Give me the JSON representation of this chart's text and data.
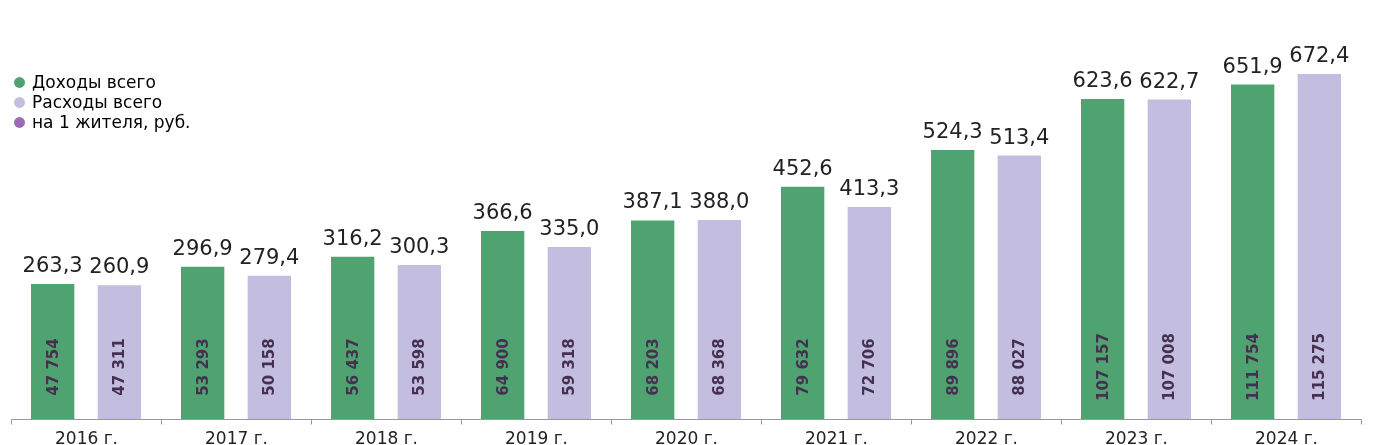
{
  "chart_data": {
    "type": "bar",
    "categories": [
      "2016 г.",
      "2017 г.",
      "2018 г.",
      "2019 г.",
      "2020 г.",
      "2021 г.",
      "2022 г.",
      "2023 г.",
      "2024 г."
    ],
    "series": [
      {
        "name": "Доходы всего",
        "color": "#4fa371",
        "values": [
          263.3,
          296.9,
          316.2,
          366.6,
          387.1,
          452.6,
          524.3,
          623.6,
          651.9
        ],
        "value_labels": [
          "263,3",
          "296,9",
          "316,2",
          "366,6",
          "387,1",
          "452,6",
          "524,3",
          "623,6",
          "651,9"
        ]
      },
      {
        "name": "Расходы всего",
        "color": "#c3bde0",
        "values": [
          260.9,
          279.4,
          300.3,
          335.0,
          388.0,
          413.3,
          513.4,
          622.7,
          672.4
        ],
        "value_labels": [
          "260,9",
          "279,4",
          "300,3",
          "335,0",
          "388,0",
          "413,3",
          "513,4",
          "622,7",
          "672,4"
        ]
      },
      {
        "name": "на 1 жителя, руб.",
        "color": "#9b6bb3",
        "type": "scatter",
        "values": [
          null,
          null,
          null,
          null,
          null,
          null,
          null,
          null,
          null
        ]
      }
    ],
    "legend": "top left",
    "grid": false,
    "annotations": [
      "47 754",
      "47 311",
      "53 293",
      "50 158",
      "56 437",
      "53 598",
      "64 900",
      "59 318",
      "68 203",
      "68 368",
      "79 632",
      "72 706",
      "89 896",
      "88 027",
      "107 157",
      "107 008",
      "111 754",
      "115 275"
    ]
  }
}
